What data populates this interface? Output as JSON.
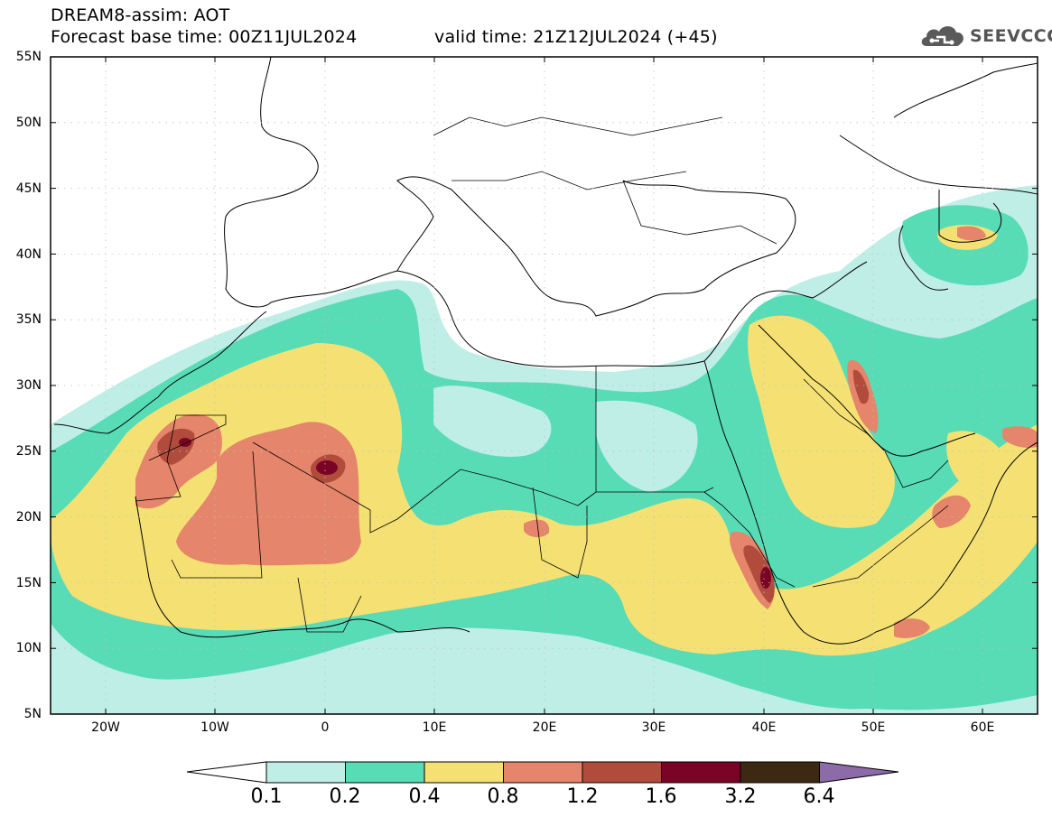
{
  "header": {
    "title": "DREAM8-assim: AOT",
    "base_time": "Forecast base time: 00Z11JUL2024",
    "valid_time": "valid time: 21Z12JUL2024 (+45)"
  },
  "logo": {
    "text": "SEEVCCC",
    "icon": "cloud-icon"
  },
  "map": {
    "lat_labels": [
      "55N",
      "50N",
      "45N",
      "40N",
      "35N",
      "30N",
      "25N",
      "20N",
      "15N",
      "10N",
      "5N"
    ],
    "lon_labels": [
      "20W",
      "10W",
      "0",
      "10E",
      "20E",
      "30E",
      "40E",
      "50E",
      "60E"
    ]
  },
  "colorbar": {
    "labels": [
      "0.1",
      "0.2",
      "0.4",
      "0.8",
      "1.2",
      "1.6",
      "3.2",
      "6.4"
    ],
    "colors": [
      "#bfeee6",
      "#58dcb6",
      "#f5e173",
      "#e5856b",
      "#b14c3d",
      "#7a0426",
      "#3d2913",
      "#8d6aa8"
    ]
  }
}
